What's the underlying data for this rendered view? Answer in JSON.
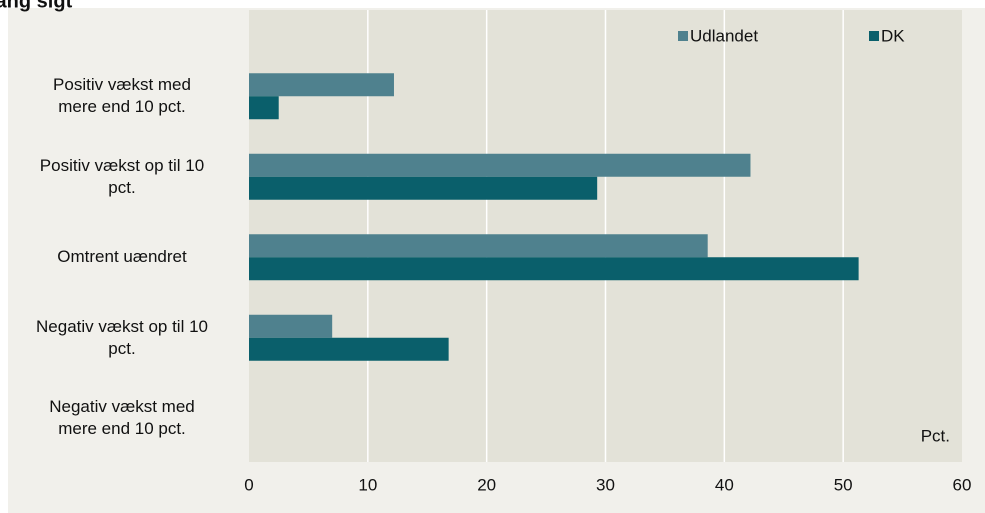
{
  "chart_data": {
    "type": "hbar",
    "title": "lang sigt",
    "unit_label": "Pct.",
    "categories": [
      "Positiv vækst med\nmere end 10 pct.",
      "Positiv vækst op til 10\npct.",
      "Omtrent uændret",
      "Negativ vækst op til 10\npct.",
      "Negativ vækst med\nmere end 10 pct."
    ],
    "series": [
      {
        "name": "Udlandet",
        "color": "#4f818e",
        "values": [
          12.2,
          42.2,
          38.6,
          7.0,
          0
        ]
      },
      {
        "name": "DK",
        "color": "#0a5f6b",
        "values": [
          2.5,
          29.3,
          51.3,
          16.8,
          0
        ]
      }
    ],
    "xlim": [
      0,
      60
    ],
    "xticks": [
      0,
      10,
      20,
      30,
      40,
      50,
      60
    ],
    "grid": true,
    "legend": "top-right"
  }
}
